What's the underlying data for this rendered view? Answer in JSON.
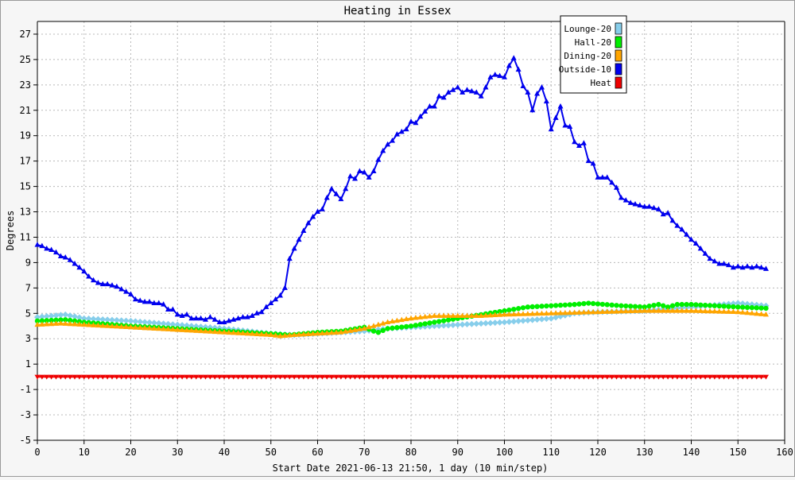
{
  "window": {
    "title": "Heating in Essex"
  },
  "chart_data": {
    "type": "line",
    "title": "Heating in Essex",
    "xlabel": "Start Date 2021-06-13 21:50, 1 day (10 min/step)",
    "ylabel": "Degrees",
    "xlim": [
      0,
      160
    ],
    "ylim": [
      -5,
      28
    ],
    "x_ticks": [
      0,
      10,
      20,
      30,
      40,
      50,
      60,
      70,
      80,
      90,
      100,
      110,
      120,
      130,
      140,
      150,
      160
    ],
    "y_ticks": [
      -5,
      -3,
      -1,
      1,
      3,
      5,
      7,
      9,
      11,
      13,
      15,
      17,
      19,
      21,
      23,
      25,
      27
    ],
    "grid": true,
    "legend_position": "top-right",
    "series": [
      {
        "name": "Lounge-20",
        "color": "#87ceeb",
        "marker": "diamond",
        "points": [
          [
            0,
            4.7
          ],
          [
            6,
            4.9
          ],
          [
            10,
            4.6
          ],
          [
            20,
            4.4
          ],
          [
            30,
            4.1
          ],
          [
            40,
            3.8
          ],
          [
            45,
            3.6
          ],
          [
            50,
            3.4
          ],
          [
            55,
            3.3
          ],
          [
            60,
            3.4
          ],
          [
            65,
            3.5
          ],
          [
            70,
            3.6
          ],
          [
            75,
            3.8
          ],
          [
            80,
            3.9
          ],
          [
            90,
            4.1
          ],
          [
            100,
            4.3
          ],
          [
            110,
            4.6
          ],
          [
            115,
            5.0
          ],
          [
            120,
            5.1
          ],
          [
            130,
            5.2
          ],
          [
            140,
            5.5
          ],
          [
            150,
            5.8
          ],
          [
            156,
            5.6
          ]
        ]
      },
      {
        "name": "Hall-20",
        "color": "#00ee00",
        "marker": "circle",
        "points": [
          [
            0,
            4.4
          ],
          [
            6,
            4.5
          ],
          [
            10,
            4.3
          ],
          [
            20,
            4.0
          ],
          [
            30,
            3.8
          ],
          [
            40,
            3.6
          ],
          [
            45,
            3.5
          ],
          [
            50,
            3.4
          ],
          [
            54,
            3.3
          ],
          [
            60,
            3.5
          ],
          [
            65,
            3.6
          ],
          [
            70,
            3.9
          ],
          [
            72,
            3.6
          ],
          [
            73,
            3.5
          ],
          [
            75,
            3.8
          ],
          [
            80,
            4.0
          ],
          [
            85,
            4.3
          ],
          [
            90,
            4.6
          ],
          [
            95,
            4.9
          ],
          [
            100,
            5.2
          ],
          [
            105,
            5.5
          ],
          [
            110,
            5.6
          ],
          [
            115,
            5.7
          ],
          [
            118,
            5.8
          ],
          [
            125,
            5.6
          ],
          [
            130,
            5.5
          ],
          [
            133,
            5.7
          ],
          [
            135,
            5.5
          ],
          [
            137,
            5.7
          ],
          [
            140,
            5.7
          ],
          [
            145,
            5.6
          ],
          [
            150,
            5.5
          ],
          [
            156,
            5.4
          ]
        ]
      },
      {
        "name": "Dining-20",
        "color": "#ffa500",
        "marker": "triangle-up",
        "points": [
          [
            0,
            4.1
          ],
          [
            5,
            4.2
          ],
          [
            10,
            4.1
          ],
          [
            20,
            3.9
          ],
          [
            30,
            3.7
          ],
          [
            40,
            3.5
          ],
          [
            45,
            3.4
          ],
          [
            50,
            3.3
          ],
          [
            52,
            3.2
          ],
          [
            55,
            3.3
          ],
          [
            60,
            3.4
          ],
          [
            65,
            3.5
          ],
          [
            70,
            3.8
          ],
          [
            75,
            4.3
          ],
          [
            80,
            4.6
          ],
          [
            85,
            4.8
          ],
          [
            90,
            4.8
          ],
          [
            95,
            4.8
          ],
          [
            100,
            4.9
          ],
          [
            110,
            5.0
          ],
          [
            120,
            5.1
          ],
          [
            130,
            5.2
          ],
          [
            140,
            5.2
          ],
          [
            150,
            5.1
          ],
          [
            156,
            4.9
          ]
        ]
      },
      {
        "name": "Outside-10",
        "color": "#0000ee",
        "marker": "triangle-up",
        "points": [
          [
            0,
            10.4
          ],
          [
            1,
            10.3
          ],
          [
            2,
            10.1
          ],
          [
            3,
            10.0
          ],
          [
            4,
            9.8
          ],
          [
            5,
            9.5
          ],
          [
            6,
            9.4
          ],
          [
            7,
            9.2
          ],
          [
            8,
            8.9
          ],
          [
            9,
            8.6
          ],
          [
            10,
            8.3
          ],
          [
            11,
            7.9
          ],
          [
            12,
            7.6
          ],
          [
            13,
            7.4
          ],
          [
            14,
            7.3
          ],
          [
            15,
            7.3
          ],
          [
            16,
            7.2
          ],
          [
            17,
            7.1
          ],
          [
            18,
            6.9
          ],
          [
            19,
            6.7
          ],
          [
            20,
            6.5
          ],
          [
            21,
            6.1
          ],
          [
            22,
            6.0
          ],
          [
            23,
            5.9
          ],
          [
            24,
            5.9
          ],
          [
            25,
            5.8
          ],
          [
            26,
            5.8
          ],
          [
            27,
            5.7
          ],
          [
            28,
            5.3
          ],
          [
            29,
            5.3
          ],
          [
            30,
            4.9
          ],
          [
            31,
            4.8
          ],
          [
            32,
            4.9
          ],
          [
            33,
            4.6
          ],
          [
            34,
            4.6
          ],
          [
            35,
            4.6
          ],
          [
            36,
            4.5
          ],
          [
            37,
            4.7
          ],
          [
            38,
            4.5
          ],
          [
            39,
            4.3
          ],
          [
            40,
            4.3
          ],
          [
            41,
            4.4
          ],
          [
            42,
            4.5
          ],
          [
            43,
            4.6
          ],
          [
            44,
            4.7
          ],
          [
            45,
            4.7
          ],
          [
            46,
            4.8
          ],
          [
            47,
            5.0
          ],
          [
            48,
            5.1
          ],
          [
            49,
            5.5
          ],
          [
            50,
            5.8
          ],
          [
            51,
            6.1
          ],
          [
            52,
            6.4
          ],
          [
            53,
            7.0
          ],
          [
            54,
            9.3
          ],
          [
            55,
            10.1
          ],
          [
            56,
            10.8
          ],
          [
            57,
            11.5
          ],
          [
            58,
            12.1
          ],
          [
            59,
            12.6
          ],
          [
            60,
            13.0
          ],
          [
            61,
            13.2
          ],
          [
            62,
            14.1
          ],
          [
            63,
            14.8
          ],
          [
            64,
            14.4
          ],
          [
            65,
            14.0
          ],
          [
            66,
            14.8
          ],
          [
            67,
            15.8
          ],
          [
            68,
            15.6
          ],
          [
            69,
            16.2
          ],
          [
            70,
            16.1
          ],
          [
            71,
            15.7
          ],
          [
            72,
            16.2
          ],
          [
            73,
            17.1
          ],
          [
            74,
            17.8
          ],
          [
            75,
            18.3
          ],
          [
            76,
            18.6
          ],
          [
            77,
            19.1
          ],
          [
            78,
            19.3
          ],
          [
            79,
            19.5
          ],
          [
            80,
            20.1
          ],
          [
            81,
            20.0
          ],
          [
            82,
            20.5
          ],
          [
            83,
            20.9
          ],
          [
            84,
            21.3
          ],
          [
            85,
            21.3
          ],
          [
            86,
            22.1
          ],
          [
            87,
            22.0
          ],
          [
            88,
            22.4
          ],
          [
            89,
            22.6
          ],
          [
            90,
            22.8
          ],
          [
            91,
            22.4
          ],
          [
            92,
            22.6
          ],
          [
            93,
            22.5
          ],
          [
            94,
            22.4
          ],
          [
            95,
            22.1
          ],
          [
            96,
            22.8
          ],
          [
            97,
            23.6
          ],
          [
            98,
            23.8
          ],
          [
            99,
            23.7
          ],
          [
            100,
            23.6
          ],
          [
            101,
            24.5
          ],
          [
            102,
            25.1
          ],
          [
            103,
            24.2
          ],
          [
            104,
            22.9
          ],
          [
            105,
            22.4
          ],
          [
            106,
            21.0
          ],
          [
            107,
            22.3
          ],
          [
            108,
            22.8
          ],
          [
            109,
            21.7
          ],
          [
            110,
            19.5
          ],
          [
            111,
            20.4
          ],
          [
            112,
            21.3
          ],
          [
            113,
            19.8
          ],
          [
            114,
            19.7
          ],
          [
            115,
            18.5
          ],
          [
            116,
            18.2
          ],
          [
            117,
            18.4
          ],
          [
            118,
            17.0
          ],
          [
            119,
            16.8
          ],
          [
            120,
            15.7
          ],
          [
            121,
            15.7
          ],
          [
            122,
            15.7
          ],
          [
            123,
            15.3
          ],
          [
            124,
            14.9
          ],
          [
            125,
            14.1
          ],
          [
            126,
            13.9
          ],
          [
            127,
            13.7
          ],
          [
            128,
            13.6
          ],
          [
            129,
            13.5
          ],
          [
            130,
            13.4
          ],
          [
            131,
            13.4
          ],
          [
            132,
            13.3
          ],
          [
            133,
            13.2
          ],
          [
            134,
            12.8
          ],
          [
            135,
            12.9
          ],
          [
            136,
            12.3
          ],
          [
            137,
            11.9
          ],
          [
            138,
            11.6
          ],
          [
            139,
            11.2
          ],
          [
            140,
            10.8
          ],
          [
            141,
            10.5
          ],
          [
            142,
            10.1
          ],
          [
            143,
            9.7
          ],
          [
            144,
            9.3
          ],
          [
            145,
            9.1
          ],
          [
            146,
            8.9
          ],
          [
            147,
            8.9
          ],
          [
            148,
            8.8
          ],
          [
            149,
            8.6
          ],
          [
            150,
            8.7
          ],
          [
            151,
            8.6
          ],
          [
            152,
            8.7
          ],
          [
            153,
            8.6
          ],
          [
            154,
            8.7
          ],
          [
            155,
            8.6
          ],
          [
            156,
            8.5
          ]
        ]
      },
      {
        "name": "Heat",
        "color": "#ee0000",
        "marker": "triangle-down",
        "points": [
          [
            0,
            0
          ],
          [
            156,
            0
          ]
        ]
      }
    ]
  }
}
